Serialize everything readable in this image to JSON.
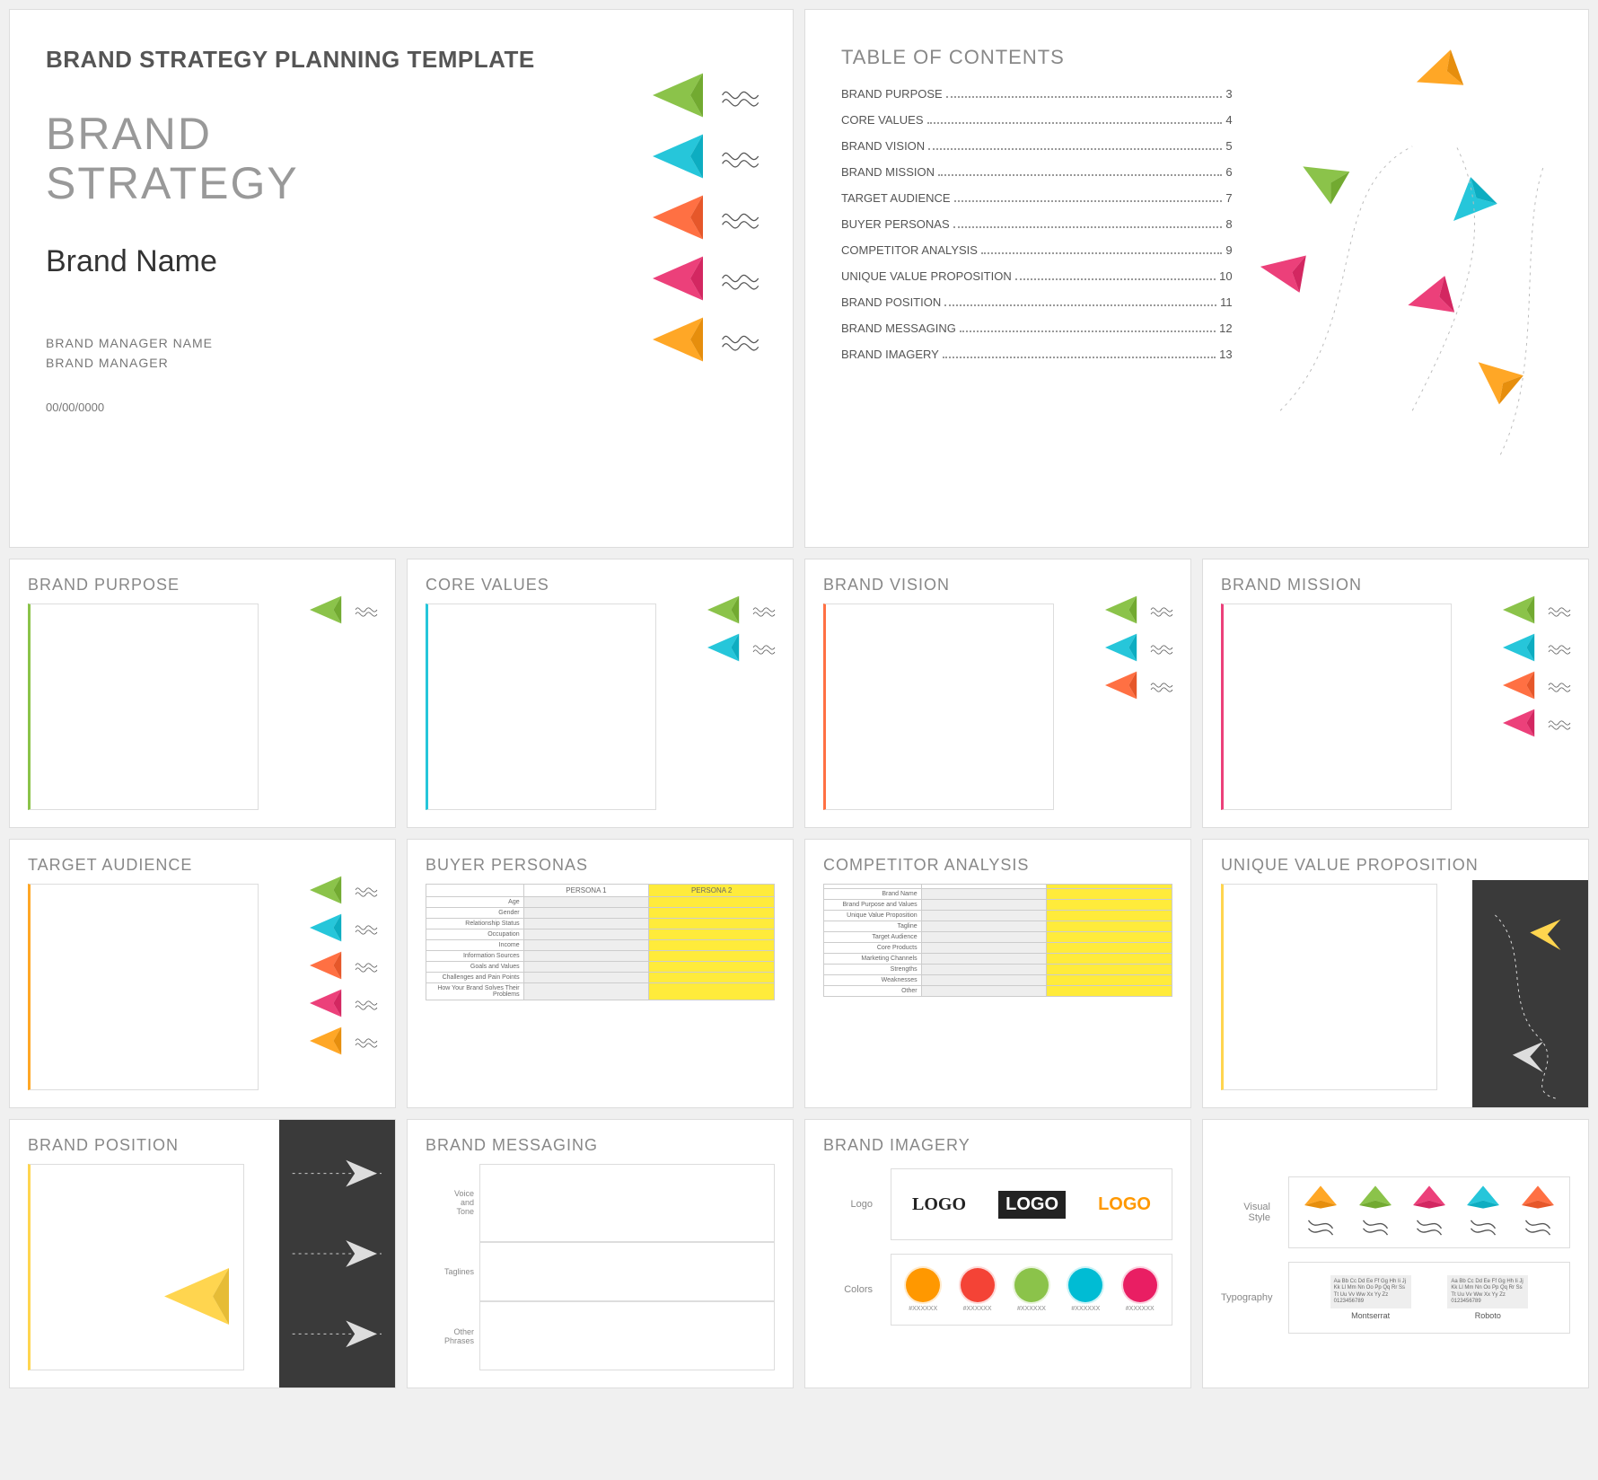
{
  "colors": {
    "green": "#8bc34a",
    "cyan": "#26c6da",
    "orange": "#ff7043",
    "pink": "#ec407a",
    "amber": "#ffa726",
    "yellow": "#ffd54f",
    "tbl_yellow": "#ffeb3b",
    "grey_bg": "#eeeeee"
  },
  "cover": {
    "template_title": "BRAND STRATEGY PLANNING TEMPLATE",
    "heading_l1": "BRAND",
    "heading_l2": "STRATEGY",
    "brand_name": "Brand Name",
    "manager_name": "BRAND MANAGER NAME",
    "manager_role": "BRAND MANAGER",
    "date": "00/00/0000",
    "plane_colors": [
      "green",
      "cyan",
      "orange",
      "pink",
      "amber"
    ]
  },
  "toc": {
    "title": "TABLE OF CONTENTS",
    "items": [
      {
        "label": "BRAND PURPOSE",
        "page": "3"
      },
      {
        "label": "CORE VALUES",
        "page": "4"
      },
      {
        "label": "BRAND VISION",
        "page": "5"
      },
      {
        "label": "BRAND MISSION",
        "page": "6"
      },
      {
        "label": "TARGET AUDIENCE",
        "page": "7"
      },
      {
        "label": "BUYER PERSONAS",
        "page": "8"
      },
      {
        "label": "COMPETITOR ANALYSIS",
        "page": "9"
      },
      {
        "label": "UNIQUE VALUE PROPOSITION",
        "page": "10"
      },
      {
        "label": "BRAND POSITION",
        "page": "11"
      },
      {
        "label": "BRAND MESSAGING",
        "page": "12"
      },
      {
        "label": "BRAND IMAGERY",
        "page": "13"
      }
    ],
    "scatter_planes": [
      "amber",
      "green",
      "cyan",
      "pink",
      "pink",
      "amber"
    ]
  },
  "row1": [
    {
      "title": "BRAND PURPOSE",
      "accent": "green",
      "planes": [
        "green"
      ]
    },
    {
      "title": "CORE VALUES",
      "accent": "cyan",
      "planes": [
        "green",
        "cyan"
      ]
    },
    {
      "title": "BRAND VISION",
      "accent": "orange",
      "planes": [
        "green",
        "cyan",
        "orange"
      ]
    },
    {
      "title": "BRAND MISSION",
      "accent": "pink",
      "planes": [
        "green",
        "cyan",
        "orange",
        "pink"
      ]
    }
  ],
  "row2": {
    "target": {
      "title": "TARGET AUDIENCE",
      "accent": "amber",
      "planes": [
        "green",
        "cyan",
        "orange",
        "pink",
        "amber"
      ]
    },
    "buyer": {
      "title": "BUYER PERSONAS",
      "headers": [
        "PERSONA 1",
        "PERSONA 2"
      ],
      "rows": [
        "Age",
        "Gender",
        "Relationship Status",
        "Occupation",
        "Income",
        "Information Sources",
        "Goals and Values",
        "Challenges and Pain Points",
        "How Your Brand Solves Their Problems"
      ],
      "col2_color": "tbl_yellow"
    },
    "competitor": {
      "title": "COMPETITOR ANALYSIS",
      "headers": [
        "",
        ""
      ],
      "rows": [
        "Brand Name",
        "Brand Purpose and Values",
        "Unique Value Proposition",
        "Tagline",
        "Target Audience",
        "Core Products",
        "Marketing Channels",
        "Strengths",
        "Weaknesses",
        "Other"
      ],
      "col2_color": "tbl_yellow"
    },
    "uvp": {
      "title": "UNIQUE VALUE PROPOSITION",
      "accent": "yellow"
    }
  },
  "row3": {
    "position": {
      "title": "BRAND POSITION",
      "accent": "yellow"
    },
    "messaging": {
      "title": "BRAND MESSAGING",
      "rows": [
        "Voice and Tone",
        "Taglines",
        "Other Phrases"
      ]
    },
    "imagery": {
      "title": "BRAND IMAGERY",
      "logo_label": "Logo",
      "logos": [
        {
          "text": "LOGO",
          "style": "font-family:serif;color:#222;"
        },
        {
          "text": "LOGO",
          "style": "background:#222;color:#fff;padding:4px 8px;"
        },
        {
          "text": "LOGO",
          "style": "color:#ff9800;font-family:sans-serif;"
        }
      ],
      "colors_label": "Colors",
      "swatches": [
        "#ff9800",
        "#f44336",
        "#8bc34a",
        "#00bcd4",
        "#e91e63"
      ],
      "swatch_text": "#XXXXXX"
    },
    "imagery2": {
      "vs_label": "Visual Style",
      "vs_planes": [
        "amber",
        "green",
        "pink",
        "cyan",
        "orange"
      ],
      "typo_label": "Typography",
      "typo": [
        {
          "name": "Montserrat",
          "sample": "Aa Bb Cc Dd Ee Ff Gg Hh Ii Jj Kk Ll Mm Nn Oo Pp Qq Rr Ss Tt Uu Vv Ww Xx Yy Zz 0123456789"
        },
        {
          "name": "Roboto",
          "sample": "Aa Bb Cc Dd Ee Ff Gg Hh Ii Jj Kk Ll Mm Nn Oo Pp Qq Rr Ss Tt Uu Vv Ww Xx Yy Zz 0123456789"
        }
      ]
    }
  }
}
